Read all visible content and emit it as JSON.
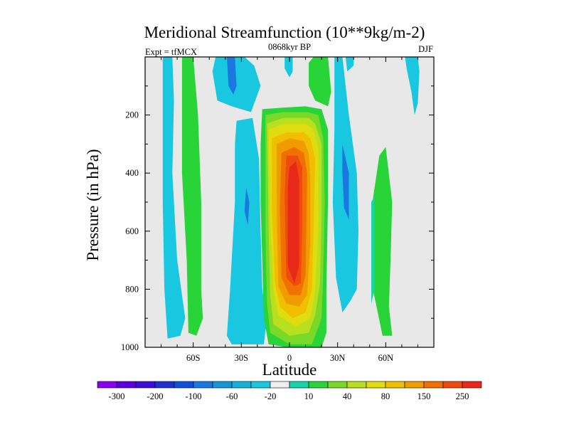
{
  "chart_data": {
    "type": "heatmap",
    "title": "Meridional Streamfunction (10**9kg/m-2)",
    "left_label": "Expt = tfMCX",
    "center_label": "0868kyr BP",
    "right_label": "DJF",
    "xlabel": "Latitude",
    "ylabel": "Pressure (in hPa)",
    "xlim": [
      -90,
      90
    ],
    "ylim": [
      1000,
      0
    ],
    "x_ticks": [
      {
        "value": -60,
        "label": "60S"
      },
      {
        "value": -30,
        "label": "30S"
      },
      {
        "value": 0,
        "label": "0"
      },
      {
        "value": 30,
        "label": "30N"
      },
      {
        "value": 60,
        "label": "60N"
      }
    ],
    "y_ticks": [
      {
        "value": 200,
        "label": "200"
      },
      {
        "value": 400,
        "label": "400"
      },
      {
        "value": 600,
        "label": "600"
      },
      {
        "value": 800,
        "label": "800"
      },
      {
        "value": 1000,
        "label": "1000"
      }
    ],
    "background_color": "#e8e8e8",
    "colorbar": {
      "colors": [
        "#8a00f0",
        "#5a00e0",
        "#3a10d8",
        "#2030d0",
        "#1050d8",
        "#1a78e0",
        "#1496d8",
        "#14b0dc",
        "#19c8e0",
        "#eeeeee",
        "#18d4a8",
        "#28d438",
        "#7ad828",
        "#b8e020",
        "#e0dc10",
        "#f0c000",
        "#f09c00",
        "#f07000",
        "#f04a10",
        "#e82818"
      ],
      "labels": [
        {
          "boundary": 1,
          "text": "-300"
        },
        {
          "boundary": 3,
          "text": "-200"
        },
        {
          "boundary": 5,
          "text": "-100"
        },
        {
          "boundary": 7,
          "text": "-60"
        },
        {
          "boundary": 9,
          "text": "-20"
        },
        {
          "boundary": 11,
          "text": "10"
        },
        {
          "boundary": 13,
          "text": "40"
        },
        {
          "boundary": 15,
          "text": "80"
        },
        {
          "boundary": 17,
          "text": "150"
        },
        {
          "boundary": 19,
          "text": "250"
        }
      ]
    },
    "regions": [
      {
        "name": "sh-polar-cell",
        "level": "-20",
        "color": "#19c8e0",
        "points": [
          [
            -79,
            0
          ],
          [
            -73,
            0
          ],
          [
            -72,
            150
          ],
          [
            -73,
            400
          ],
          [
            -70,
            700
          ],
          [
            -65,
            900
          ],
          [
            -68,
            960
          ],
          [
            -76,
            970
          ],
          [
            -78,
            800
          ],
          [
            -79,
            500
          ]
        ]
      },
      {
        "name": "sh-ferrel-cell",
        "level": "20",
        "color": "#28d438",
        "points": [
          [
            -67,
            0
          ],
          [
            -60,
            0
          ],
          [
            -57,
            200
          ],
          [
            -55,
            500
          ],
          [
            -55,
            800
          ],
          [
            -54,
            900
          ],
          [
            -58,
            960
          ],
          [
            -63,
            950
          ],
          [
            -64,
            700
          ],
          [
            -67,
            400
          ],
          [
            -67,
            150
          ]
        ]
      },
      {
        "name": "sh-stratosphere-cell",
        "level": "-20",
        "color": "#19c8e0",
        "points": [
          [
            -46,
            0
          ],
          [
            -28,
            0
          ],
          [
            -22,
            30
          ],
          [
            -18,
            100
          ],
          [
            -24,
            190
          ],
          [
            -36,
            170
          ],
          [
            -45,
            150
          ],
          [
            -48,
            50
          ]
        ]
      },
      {
        "name": "sh-stratosphere-core",
        "level": "-60",
        "color": "#1a78e0",
        "points": [
          [
            -39,
            0
          ],
          [
            -34,
            0
          ],
          [
            -33,
            100
          ],
          [
            -35,
            130
          ],
          [
            -38,
            100
          ]
        ]
      },
      {
        "name": "sh-subtropical-cell",
        "level": "-20",
        "color": "#19c8e0",
        "points": [
          [
            -33,
            220
          ],
          [
            -23,
            210
          ],
          [
            -19,
            350
          ],
          [
            -18,
            600
          ],
          [
            -17,
            800
          ],
          [
            -14,
            900
          ],
          [
            -16,
            990
          ],
          [
            -36,
            990
          ],
          [
            -39,
            960
          ],
          [
            -37,
            800
          ],
          [
            -34,
            500
          ],
          [
            -34,
            300
          ]
        ]
      },
      {
        "name": "sh-subtropical-core",
        "level": "-60",
        "color": "#1a78e0",
        "points": [
          [
            -27,
            450
          ],
          [
            -25,
            500
          ],
          [
            -26,
            580
          ],
          [
            -28,
            530
          ]
        ]
      },
      {
        "name": "hadley-cell",
        "level": "20",
        "color": "#28d438",
        "points": [
          [
            -17,
            180
          ],
          [
            -5,
            175
          ],
          [
            10,
            170
          ],
          [
            20,
            180
          ],
          [
            24,
            250
          ],
          [
            24,
            500
          ],
          [
            23,
            800
          ],
          [
            23,
            950
          ],
          [
            20,
            1000
          ],
          [
            -1,
            1000
          ],
          [
            -13,
            990
          ],
          [
            -16,
            900
          ],
          [
            -17,
            700
          ],
          [
            -18,
            500
          ],
          [
            -18,
            300
          ]
        ]
      },
      {
        "name": "hadley-cell-40",
        "level": "40",
        "color": "#7ad828",
        "points": [
          [
            -15,
            200
          ],
          [
            -4,
            190
          ],
          [
            11,
            190
          ],
          [
            18,
            200
          ],
          [
            21,
            280
          ],
          [
            22,
            500
          ],
          [
            21,
            750
          ],
          [
            20,
            900
          ],
          [
            14,
            990
          ],
          [
            0,
            990
          ],
          [
            -12,
            950
          ],
          [
            -14,
            850
          ],
          [
            -15,
            600
          ]
        ]
      },
      {
        "name": "hadley-cell-60",
        "level": "60",
        "color": "#b8e020",
        "points": [
          [
            -14,
            230
          ],
          [
            -4,
            210
          ],
          [
            12,
            210
          ],
          [
            16,
            230
          ],
          [
            20,
            300
          ],
          [
            20,
            550
          ],
          [
            19,
            780
          ],
          [
            16,
            890
          ],
          [
            12,
            950
          ],
          [
            0,
            960
          ],
          [
            -10,
            920
          ],
          [
            -12,
            820
          ],
          [
            -13,
            600
          ]
        ]
      },
      {
        "name": "hadley-cell-80",
        "level": "80",
        "color": "#e0dc10",
        "points": [
          [
            -13,
            250
          ],
          [
            -3,
            230
          ],
          [
            10,
            230
          ],
          [
            15,
            250
          ],
          [
            18,
            320
          ],
          [
            18,
            580
          ],
          [
            16,
            800
          ],
          [
            13,
            900
          ],
          [
            4,
            930
          ],
          [
            -7,
            890
          ],
          [
            -10,
            800
          ],
          [
            -12,
            560
          ]
        ]
      },
      {
        "name": "hadley-cell-100",
        "level": "100",
        "color": "#f0c000",
        "points": [
          [
            -11,
            280
          ],
          [
            -2,
            260
          ],
          [
            9,
            260
          ],
          [
            13,
            280
          ],
          [
            16,
            350
          ],
          [
            15,
            600
          ],
          [
            14,
            800
          ],
          [
            10,
            880
          ],
          [
            2,
            900
          ],
          [
            -6,
            860
          ],
          [
            -9,
            780
          ],
          [
            -11,
            520
          ]
        ]
      },
      {
        "name": "hadley-cell-150",
        "level": "150",
        "color": "#f09c00",
        "points": [
          [
            -8,
            300
          ],
          [
            0,
            280
          ],
          [
            9,
            290
          ],
          [
            12,
            330
          ],
          [
            13,
            420
          ],
          [
            13,
            650
          ],
          [
            11,
            820
          ],
          [
            6,
            860
          ],
          [
            -2,
            850
          ],
          [
            -7,
            790
          ],
          [
            -8,
            520
          ]
        ]
      },
      {
        "name": "hadley-cell-200",
        "level": "200",
        "color": "#f07000",
        "points": [
          [
            -5,
            330
          ],
          [
            3,
            310
          ],
          [
            9,
            330
          ],
          [
            11,
            400
          ],
          [
            10,
            750
          ],
          [
            7,
            820
          ],
          [
            0,
            820
          ],
          [
            -5,
            760
          ],
          [
            -6,
            520
          ]
        ]
      },
      {
        "name": "hadley-cell-250",
        "level": "250",
        "color": "#f04a10",
        "points": [
          [
            -2,
            340
          ],
          [
            5,
            340
          ],
          [
            8,
            380
          ],
          [
            8,
            580
          ],
          [
            7,
            780
          ],
          [
            3,
            790
          ],
          [
            -2,
            760
          ],
          [
            -3,
            480
          ]
        ]
      },
      {
        "name": "hadley-cell-300",
        "level": "300",
        "color": "#e82818",
        "points": [
          [
            0,
            380
          ],
          [
            4,
            360
          ],
          [
            6,
            420
          ],
          [
            6,
            720
          ],
          [
            3,
            780
          ],
          [
            -1,
            720
          ],
          [
            -1,
            450
          ]
        ]
      },
      {
        "name": "equatorial-upper-cell",
        "level": "-20",
        "color": "#19c8e0",
        "points": [
          [
            -3,
            0
          ],
          [
            2,
            0
          ],
          [
            2,
            50
          ],
          [
            0,
            70
          ],
          [
            -3,
            40
          ]
        ]
      },
      {
        "name": "nh-upper-cell",
        "level": "20",
        "color": "#28d438",
        "points": [
          [
            15,
            0
          ],
          [
            24,
            0
          ],
          [
            26,
            120
          ],
          [
            24,
            170
          ],
          [
            16,
            150
          ],
          [
            12,
            100
          ],
          [
            12,
            20
          ]
        ]
      },
      {
        "name": "nh-tropical-cell",
        "level": "-20",
        "color": "#19c8e0",
        "points": [
          [
            28,
            0
          ],
          [
            33,
            0
          ],
          [
            37,
            200
          ],
          [
            42,
            400
          ],
          [
            43,
            600
          ],
          [
            42,
            800
          ],
          [
            38,
            840
          ],
          [
            33,
            880
          ],
          [
            29,
            760
          ],
          [
            27,
            500
          ],
          [
            28,
            250
          ]
        ]
      },
      {
        "name": "nh-tropical-core",
        "level": "-60",
        "color": "#1a78e0",
        "points": [
          [
            33,
            300
          ],
          [
            37,
            400
          ],
          [
            37,
            560
          ],
          [
            34,
            520
          ],
          [
            33,
            400
          ]
        ]
      },
      {
        "name": "nh-upper-cell-2",
        "level": "-20",
        "color": "#19c8e0",
        "points": [
          [
            35,
            0
          ],
          [
            40,
            0
          ],
          [
            40,
            30
          ],
          [
            36,
            50
          ]
        ]
      },
      {
        "name": "nh-midlatitude-cell",
        "level": "20",
        "color": "#28d438",
        "points": [
          [
            52,
            490
          ],
          [
            56,
            340
          ],
          [
            60,
            310
          ],
          [
            64,
            500
          ],
          [
            63,
            700
          ],
          [
            62,
            860
          ],
          [
            64,
            960
          ],
          [
            58,
            960
          ],
          [
            55,
            880
          ],
          [
            52,
            800
          ]
        ]
      },
      {
        "name": "nh-midlatitude-edge",
        "level": "10",
        "color": "#18d4a8",
        "points": [
          [
            51,
            500
          ],
          [
            53,
            480
          ],
          [
            53,
            800
          ],
          [
            51,
            850
          ]
        ]
      },
      {
        "name": "nh-polar-cell",
        "level": "-20",
        "color": "#19c8e0",
        "points": [
          [
            72,
            0
          ],
          [
            80,
            0
          ],
          [
            81,
            50
          ],
          [
            80,
            160
          ],
          [
            78,
            200
          ],
          [
            76,
            120
          ],
          [
            73,
            40
          ]
        ]
      }
    ]
  }
}
